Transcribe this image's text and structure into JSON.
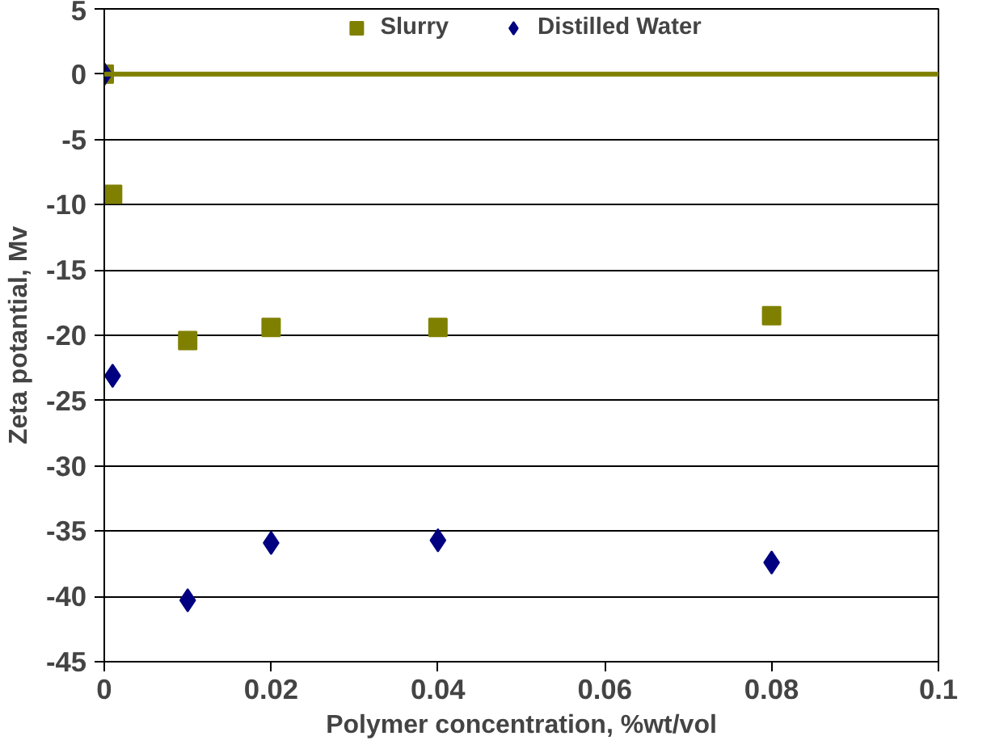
{
  "chart_data": {
    "type": "scatter",
    "xlabel": "Polymer concentration, %wt/vol",
    "ylabel": "Zeta potantial, Mv",
    "x": [
      0,
      0.001,
      0.01,
      0.02,
      0.04,
      0.08
    ],
    "series": [
      {
        "name": "Slurry",
        "color": "#808000",
        "marker": "square",
        "values": [
          0,
          -9.2,
          -20.4,
          -19.4,
          -19.4,
          -18.5
        ]
      },
      {
        "name": "Distilled Water",
        "color": "#000080",
        "marker": "diamond",
        "values": [
          0,
          -23.1,
          -40.3,
          -35.9,
          -35.7,
          -37.4
        ]
      }
    ],
    "xlim": [
      0,
      0.1
    ],
    "xticks": [
      0,
      0.02,
      0.04,
      0.06,
      0.08,
      0.1
    ],
    "ylim": [
      -45,
      5
    ],
    "yticks": [
      -45,
      -40,
      -35,
      -30,
      -25,
      -20,
      -15,
      -10,
      -5,
      0,
      5
    ],
    "ref_lines": [
      {
        "axis": "y",
        "value": 0,
        "color": "#808000"
      }
    ],
    "grid": "y",
    "legend": "top"
  }
}
